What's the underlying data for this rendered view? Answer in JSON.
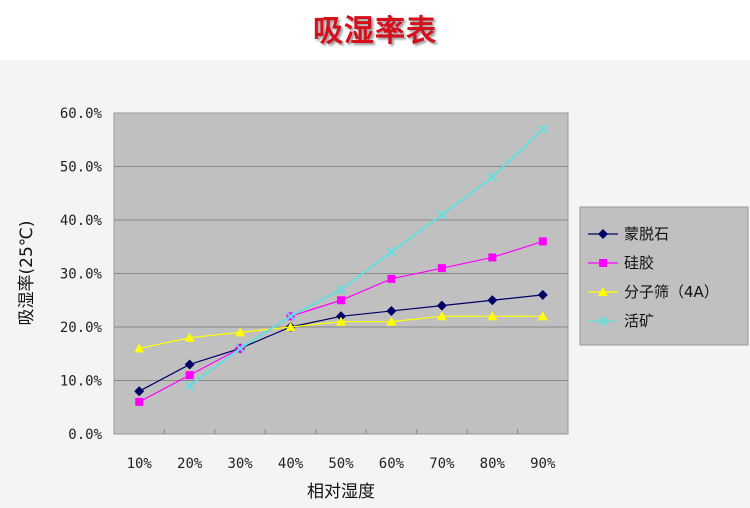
{
  "chart_data": {
    "type": "line",
    "title": "吸湿率表",
    "xlabel": "相对湿度",
    "ylabel": "吸湿率(25℃)",
    "categories": [
      "10%",
      "20%",
      "30%",
      "40%",
      "50%",
      "60%",
      "70%",
      "80%",
      "90%"
    ],
    "ylim": [
      0,
      60
    ],
    "yticks": [
      "0.0%",
      "10.0%",
      "20.0%",
      "30.0%",
      "40.0%",
      "50.0%",
      "60.0%"
    ],
    "grid": true,
    "legend": "right",
    "plot_background": "#c0c0c0",
    "series": [
      {
        "name": "蒙脱石",
        "color": "#000066",
        "marker": "diamond",
        "values": [
          8,
          13,
          16,
          20,
          22,
          23,
          24,
          25,
          26
        ]
      },
      {
        "name": "硅胶",
        "color": "#ff00ff",
        "marker": "square",
        "values": [
          6,
          11,
          16,
          22,
          25,
          29,
          31,
          33,
          36
        ]
      },
      {
        "name": "分子筛（4A）",
        "color": "#ffff00",
        "marker": "triangle",
        "values": [
          16,
          18,
          19,
          20,
          21,
          21,
          22,
          22,
          22
        ]
      },
      {
        "name": "活矿",
        "color": "#66dddd",
        "marker": "x",
        "values": [
          null,
          9,
          16,
          22,
          27,
          34,
          41,
          48,
          57
        ]
      }
    ]
  }
}
